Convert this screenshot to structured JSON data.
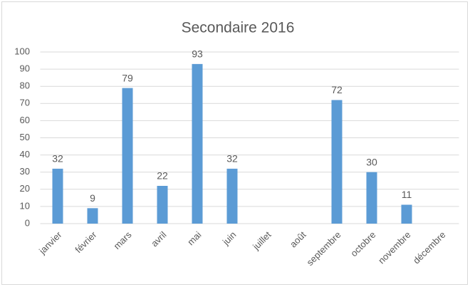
{
  "chart_data": {
    "type": "bar",
    "title": "Secondaire 2016",
    "categories": [
      "janvier",
      "février",
      "mars",
      "avril",
      "mai",
      "juin",
      "juillet",
      "août",
      "septembre",
      "octobre",
      "novembre",
      "décembre"
    ],
    "values": [
      32,
      9,
      79,
      22,
      93,
      32,
      null,
      null,
      72,
      30,
      11,
      null
    ],
    "color": "#5b9bd5",
    "ylim": [
      0,
      100
    ],
    "yticks": [
      0,
      10,
      20,
      30,
      40,
      50,
      60,
      70,
      80,
      90,
      100
    ],
    "grid": true
  }
}
